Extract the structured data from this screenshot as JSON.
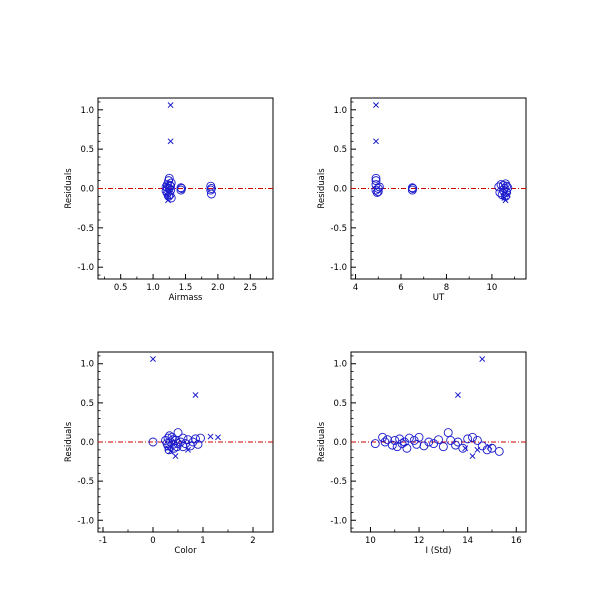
{
  "colors": {
    "marker": "#1a1acc",
    "zero_line": "#cc0000",
    "axis": "#000000"
  },
  "chart_data": [
    {
      "type": "scatter",
      "xlabel": "Airmass",
      "ylabel": "Residuals",
      "xlim": [
        0.15,
        2.85
      ],
      "ylim": [
        -1.15,
        1.15
      ],
      "xticks": [
        0.5,
        1.0,
        1.5,
        2.0,
        2.5
      ],
      "xtick_labels": [
        "0.5",
        "1.0",
        "1.5",
        "2.0",
        "2.5"
      ],
      "yticks": [
        -1.0,
        -0.5,
        0.0,
        0.5,
        1.0
      ],
      "ytick_labels": [
        "-1.0",
        "-0.5",
        "0.0",
        "0.5",
        "1.0"
      ],
      "reference_line_y": 0.0,
      "circles": [
        [
          1.2,
          0.02
        ],
        [
          1.2,
          -0.03
        ],
        [
          1.22,
          0.05
        ],
        [
          1.22,
          -0.06
        ],
        [
          1.24,
          0.1
        ],
        [
          1.24,
          -0.1
        ],
        [
          1.25,
          0.0
        ],
        [
          1.25,
          0.13
        ],
        [
          1.26,
          -0.08
        ],
        [
          1.27,
          0.03
        ],
        [
          1.27,
          -0.02
        ],
        [
          1.28,
          0.07
        ],
        [
          1.28,
          -0.12
        ],
        [
          1.22,
          0.01
        ],
        [
          1.26,
          0.04
        ],
        [
          1.43,
          0.01
        ],
        [
          1.43,
          -0.02
        ],
        [
          1.44,
          0.0
        ],
        [
          1.89,
          0.03
        ],
        [
          1.89,
          -0.02
        ],
        [
          1.9,
          -0.07
        ],
        [
          1.9,
          0.0
        ]
      ],
      "crosses": [
        [
          1.27,
          1.06
        ],
        [
          1.27,
          0.6
        ],
        [
          1.21,
          -0.08
        ],
        [
          1.23,
          -0.15
        ],
        [
          1.25,
          -0.1
        ],
        [
          1.21,
          0.05
        ],
        [
          1.26,
          -0.04
        ]
      ]
    },
    {
      "type": "scatter",
      "xlabel": "UT",
      "ylabel": "Residuals",
      "xlim": [
        3.8,
        11.5
      ],
      "ylim": [
        -1.15,
        1.15
      ],
      "xticks": [
        4,
        6,
        8,
        10
      ],
      "xtick_labels": [
        "4",
        "6",
        "8",
        "10"
      ],
      "yticks": [
        -1.0,
        -0.5,
        0.0,
        0.5,
        1.0
      ],
      "ytick_labels": [
        "-1.0",
        "-0.5",
        "0.0",
        "0.5",
        "1.0"
      ],
      "reference_line_y": 0.0,
      "circles": [
        [
          4.9,
          0.1
        ],
        [
          4.9,
          0.05
        ],
        [
          4.9,
          -0.02
        ],
        [
          5.0,
          0.0
        ],
        [
          4.95,
          -0.05
        ],
        [
          5.05,
          0.02
        ],
        [
          5.0,
          -0.04
        ],
        [
          4.9,
          0.13
        ],
        [
          6.5,
          0.01
        ],
        [
          6.5,
          -0.02
        ],
        [
          6.52,
          0.0
        ],
        [
          10.3,
          0.02
        ],
        [
          10.35,
          -0.05
        ],
        [
          10.4,
          0.05
        ],
        [
          10.45,
          -0.08
        ],
        [
          10.5,
          -0.02
        ],
        [
          10.55,
          0.0
        ],
        [
          10.6,
          0.06
        ],
        [
          10.6,
          -0.1
        ],
        [
          10.65,
          0.03
        ],
        [
          10.65,
          -0.05
        ],
        [
          10.7,
          0.01
        ],
        [
          10.5,
          0.04
        ]
      ],
      "crosses": [
        [
          4.9,
          1.06
        ],
        [
          4.9,
          0.6
        ],
        [
          10.6,
          -0.15
        ],
        [
          10.55,
          -0.12
        ],
        [
          10.7,
          -0.08
        ],
        [
          10.5,
          -0.1
        ]
      ]
    },
    {
      "type": "scatter",
      "xlabel": "Color",
      "ylabel": "Residuals",
      "xlim": [
        -1.1,
        2.4
      ],
      "ylim": [
        -1.15,
        1.15
      ],
      "xticks": [
        -1,
        0,
        1,
        2
      ],
      "xtick_labels": [
        "-1",
        "0",
        "1",
        "2"
      ],
      "yticks": [
        -1.0,
        -0.5,
        0.0,
        0.5,
        1.0
      ],
      "ytick_labels": [
        "-1.0",
        "-0.5",
        "0.0",
        "0.5",
        "1.0"
      ],
      "reference_line_y": 0.0,
      "circles": [
        [
          0.0,
          0.0
        ],
        [
          0.25,
          0.02
        ],
        [
          0.3,
          -0.05
        ],
        [
          0.3,
          0.05
        ],
        [
          0.32,
          -0.1
        ],
        [
          0.35,
          0.0
        ],
        [
          0.38,
          0.06
        ],
        [
          0.4,
          -0.03
        ],
        [
          0.4,
          0.03
        ],
        [
          0.42,
          -0.08
        ],
        [
          0.45,
          0.02
        ],
        [
          0.5,
          0.12
        ],
        [
          0.5,
          -0.02
        ],
        [
          0.55,
          0.0
        ],
        [
          0.6,
          0.05
        ],
        [
          0.6,
          -0.06
        ],
        [
          0.65,
          -0.02
        ],
        [
          0.7,
          0.03
        ],
        [
          0.75,
          -0.05
        ],
        [
          0.8,
          0.0
        ],
        [
          0.85,
          0.04
        ],
        [
          0.9,
          -0.03
        ],
        [
          0.95,
          0.05
        ],
        [
          0.28,
          -0.02
        ],
        [
          0.33,
          0.08
        ],
        [
          0.48,
          -0.06
        ]
      ],
      "crosses": [
        [
          0.0,
          1.06
        ],
        [
          0.85,
          0.6
        ],
        [
          1.3,
          0.06
        ],
        [
          1.15,
          0.07
        ],
        [
          0.45,
          -0.18
        ],
        [
          0.35,
          -0.12
        ],
        [
          0.7,
          -0.1
        ],
        [
          0.3,
          -0.08
        ]
      ]
    },
    {
      "type": "scatter",
      "xlabel": "I (Std)",
      "ylabel": "Residuals",
      "xlim": [
        9.2,
        16.4
      ],
      "ylim": [
        -1.15,
        1.15
      ],
      "xticks": [
        10,
        12,
        14,
        16
      ],
      "xtick_labels": [
        "10",
        "12",
        "14",
        "16"
      ],
      "yticks": [
        -1.0,
        -0.5,
        0.0,
        0.5,
        1.0
      ],
      "ytick_labels": [
        "-1.0",
        "-0.5",
        "0.0",
        "0.5",
        "1.0"
      ],
      "reference_line_y": 0.0,
      "circles": [
        [
          10.2,
          -0.02
        ],
        [
          10.5,
          0.06
        ],
        [
          10.6,
          0.0
        ],
        [
          10.7,
          0.03
        ],
        [
          10.9,
          -0.04
        ],
        [
          11.0,
          0.02
        ],
        [
          11.1,
          -0.06
        ],
        [
          11.2,
          0.04
        ],
        [
          11.3,
          -0.02
        ],
        [
          11.4,
          0.0
        ],
        [
          11.5,
          -0.08
        ],
        [
          11.6,
          0.05
        ],
        [
          11.8,
          0.02
        ],
        [
          11.9,
          -0.03
        ],
        [
          12.0,
          0.06
        ],
        [
          12.2,
          -0.05
        ],
        [
          12.4,
          0.0
        ],
        [
          12.6,
          -0.02
        ],
        [
          12.8,
          0.03
        ],
        [
          13.0,
          -0.06
        ],
        [
          13.2,
          0.12
        ],
        [
          13.3,
          0.02
        ],
        [
          13.5,
          -0.04
        ],
        [
          13.6,
          0.0
        ],
        [
          13.8,
          -0.08
        ],
        [
          14.0,
          0.04
        ],
        [
          14.2,
          0.06
        ],
        [
          14.4,
          0.02
        ],
        [
          14.6,
          -0.05
        ],
        [
          14.8,
          -0.1
        ],
        [
          15.0,
          -0.08
        ],
        [
          15.3,
          -0.12
        ]
      ],
      "crosses": [
        [
          14.6,
          1.06
        ],
        [
          13.6,
          0.6
        ],
        [
          14.2,
          -0.18
        ],
        [
          14.4,
          -0.1
        ],
        [
          14.9,
          -0.06
        ],
        [
          13.9,
          -0.08
        ]
      ]
    }
  ]
}
